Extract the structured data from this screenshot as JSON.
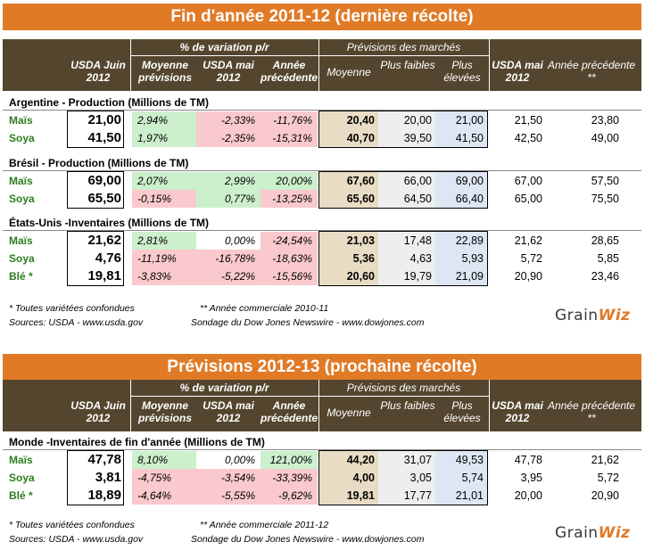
{
  "colors": {
    "title_bg": "#e07a27",
    "header_bg": "#54462e",
    "positive_bg": "#ccefcc",
    "negative_bg": "#f9c9ce",
    "average_bg": "#e8dcc4",
    "high_bg": "#dde6f2",
    "label_green": "#2e7d1f"
  },
  "headers": {
    "usda_juin": "USDA Juin 2012",
    "variation": "% de variation p/r",
    "moyenne_prev": "Moyenne prévisions",
    "usda_mai": "USDA mai 2012",
    "annee_prec": "Année précédente",
    "prev_marches": "Prévisions des marchés",
    "moyenne": "Moyenne",
    "plus_faibles": "Plus faibles",
    "plus_elevees": "Plus élevées",
    "usda_mai_2": "USDA mai 2012",
    "annee_prec_2": "Année précédente **"
  },
  "table1": {
    "title": "Fin d'année 2011-12 (dernière récolte)",
    "groups": [
      {
        "label": "Argentine - Production (Millions de TM)",
        "rows": [
          {
            "name": "Maïs",
            "usda": "21,00",
            "v1": "2,94%",
            "v2": "-2,33%",
            "v3": "-11,76%",
            "moy": "20,40",
            "low": "20,00",
            "high": "21,00",
            "may": "21,50",
            "prev": "23,80"
          },
          {
            "name": "Soya",
            "usda": "41,50",
            "v1": "1,97%",
            "v2": "-2,35%",
            "v3": "-15,31%",
            "moy": "40,70",
            "low": "39,50",
            "high": "41,50",
            "may": "42,50",
            "prev": "49,00"
          }
        ]
      },
      {
        "label": "Brésil - Production (Millions de TM)",
        "rows": [
          {
            "name": "Maïs",
            "usda": "69,00",
            "v1": "2,07%",
            "v2": "2,99%",
            "v3": "20,00%",
            "moy": "67,60",
            "low": "66,00",
            "high": "69,00",
            "may": "67,00",
            "prev": "57,50"
          },
          {
            "name": "Soya",
            "usda": "65,50",
            "v1": "-0,15%",
            "v2": "0,77%",
            "v3": "-13,25%",
            "moy": "65,60",
            "low": "64,50",
            "high": "66,40",
            "may": "65,00",
            "prev": "75,50"
          }
        ]
      },
      {
        "label": "États-Unis -Inventaires (Millions de TM)",
        "rows": [
          {
            "name": "Maïs",
            "usda": "21,62",
            "v1": "2,81%",
            "v2": "0,00%",
            "v3": "-24,54%",
            "moy": "21,03",
            "low": "17,48",
            "high": "22,89",
            "may": "21,62",
            "prev": "28,65"
          },
          {
            "name": "Soya",
            "usda": "4,76",
            "v1": "-11,19%",
            "v2": "-16,78%",
            "v3": "-18,63%",
            "moy": "5,36",
            "low": "4,63",
            "high": "5,93",
            "may": "5,72",
            "prev": "5,85"
          },
          {
            "name": "Blé *",
            "usda": "19,81",
            "v1": "-3,83%",
            "v2": "-5,22%",
            "v3": "-15,56%",
            "moy": "20,60",
            "low": "19,79",
            "high": "21,09",
            "may": "20,90",
            "prev": "23,46"
          }
        ]
      }
    ],
    "footnote1": "* Toutes variétées confondues",
    "footnote2": "** Année commerciale 2010-11",
    "sources": "Sources: USDA - www.usda.gov",
    "survey": "Sondage du Dow Jones Newswire  - www.dowjones.com"
  },
  "table2": {
    "title": "Prévisions 2012-13 (prochaine récolte)",
    "groups": [
      {
        "label": "Monde -Inventaires de fin d'année (Millions de TM)",
        "rows": [
          {
            "name": "Maïs",
            "usda": "47,78",
            "v1": "8,10%",
            "v2": "0,00%",
            "v3": "121,00%",
            "moy": "44,20",
            "low": "31,07",
            "high": "49,53",
            "may": "47,78",
            "prev": "21,62"
          },
          {
            "name": "Soya",
            "usda": "3,81",
            "v1": "-4,75%",
            "v2": "-3,54%",
            "v3": "-33,39%",
            "moy": "4,00",
            "low": "3,05",
            "high": "5,74",
            "may": "3,95",
            "prev": "5,72"
          },
          {
            "name": "Blé *",
            "usda": "18,89",
            "v1": "-4,64%",
            "v2": "-5,55%",
            "v3": "-9,62%",
            "moy": "19,81",
            "low": "17,77",
            "high": "21,01",
            "may": "20,00",
            "prev": "20,90"
          }
        ]
      }
    ],
    "footnote1": "* Toutes variétées confondues",
    "footnote2": "** Année commerciale 2011-12",
    "sources": "Sources: USDA - www.usda.gov",
    "survey": "Sondage du Dow Jones Newswire  - www.dowjones.com"
  },
  "logo": {
    "part1": "Grain",
    "part2": "Wiz"
  }
}
